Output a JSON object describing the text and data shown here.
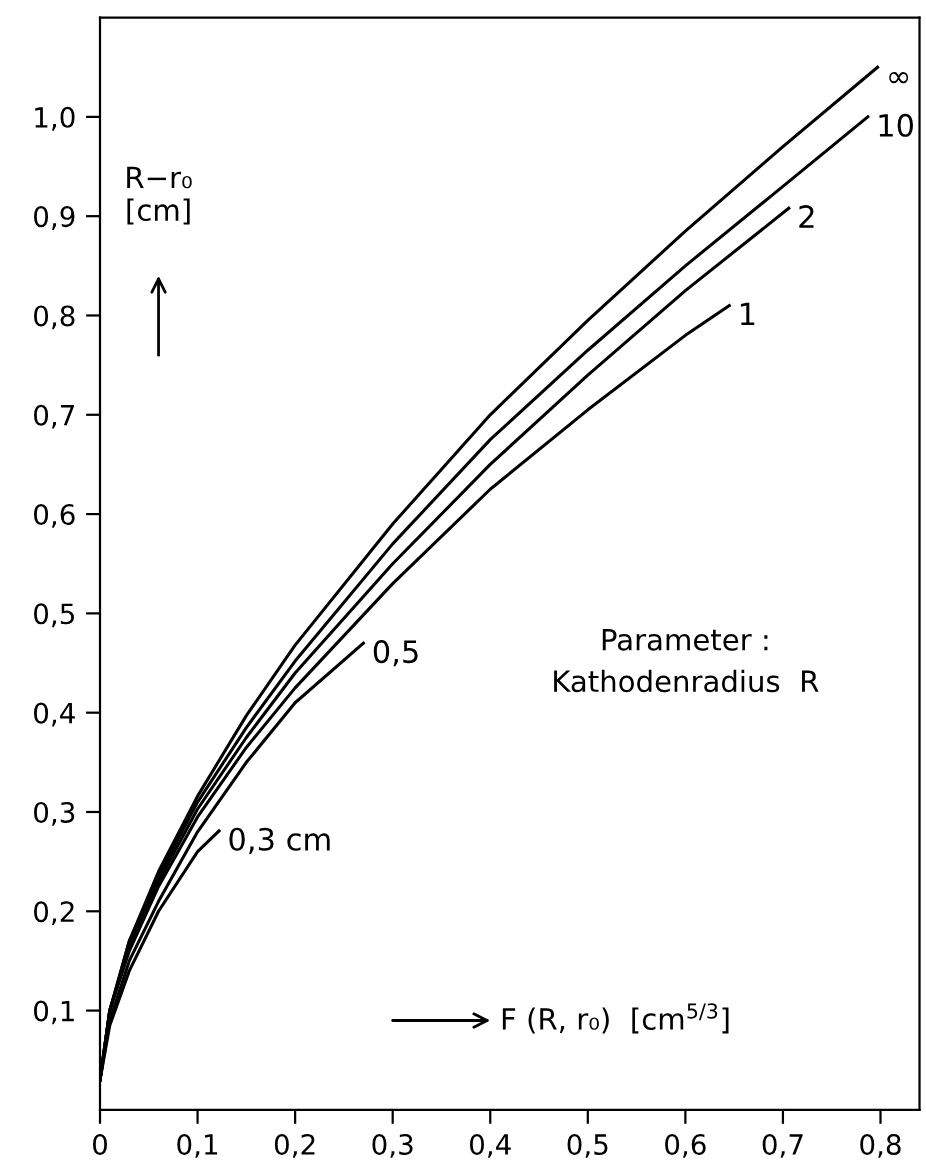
{
  "chart_data": {
    "type": "line",
    "xlabel": "F (R, r₀)  [cm$^{5/3}$]",
    "ylabel": "R−r₀\n[cm]",
    "annotations": [
      "Parameter :\nKathodenradius  R"
    ],
    "series": [
      {
        "name": "∞",
        "color": "#000000",
        "x": [
          0,
          0.01,
          0.03,
          0.06,
          0.1,
          0.15,
          0.2,
          0.3,
          0.4,
          0.5,
          0.6,
          0.7,
          0.797
        ],
        "values": [
          0.03,
          0.1,
          0.17,
          0.24,
          0.316,
          0.397,
          0.468,
          0.59,
          0.7,
          0.795,
          0.885,
          0.97,
          1.05
        ]
      },
      {
        "name": "10",
        "color": "#000000",
        "x": [
          0,
          0.01,
          0.03,
          0.06,
          0.1,
          0.15,
          0.2,
          0.3,
          0.4,
          0.5,
          0.6,
          0.7,
          0.787
        ],
        "values": [
          0.03,
          0.1,
          0.17,
          0.235,
          0.31,
          0.385,
          0.452,
          0.57,
          0.675,
          0.765,
          0.85,
          0.93,
          1.0
        ]
      },
      {
        "name": "2",
        "color": "#000000",
        "x": [
          0,
          0.01,
          0.03,
          0.06,
          0.1,
          0.15,
          0.2,
          0.3,
          0.4,
          0.5,
          0.6,
          0.706
        ],
        "values": [
          0.03,
          0.1,
          0.165,
          0.23,
          0.303,
          0.375,
          0.44,
          0.55,
          0.65,
          0.74,
          0.825,
          0.908
        ]
      },
      {
        "name": "1",
        "color": "#000000",
        "x": [
          0,
          0.01,
          0.03,
          0.06,
          0.1,
          0.15,
          0.2,
          0.3,
          0.4,
          0.5,
          0.6,
          0.645
        ],
        "values": [
          0.03,
          0.1,
          0.16,
          0.225,
          0.295,
          0.365,
          0.425,
          0.53,
          0.625,
          0.705,
          0.78,
          0.81
        ]
      },
      {
        "name": "0,5",
        "color": "#000000",
        "x": [
          0,
          0.01,
          0.03,
          0.06,
          0.1,
          0.15,
          0.2,
          0.27
        ],
        "values": [
          0.03,
          0.09,
          0.15,
          0.21,
          0.28,
          0.35,
          0.41,
          0.47
        ]
      },
      {
        "name": "0,3 cm",
        "color": "#000000",
        "x": [
          0,
          0.01,
          0.03,
          0.06,
          0.1,
          0.122
        ],
        "values": [
          0.03,
          0.085,
          0.14,
          0.2,
          0.26,
          0.281
        ]
      }
    ],
    "xlim": [
      0,
      0.84
    ],
    "ylim": [
      0,
      1.1
    ],
    "xticks": [
      0,
      {
        "value": 0.1,
        "label": "0,1"
      },
      {
        "value": 0.2,
        "label": "0,2"
      },
      {
        "value": 0.3,
        "label": "0,3"
      },
      {
        "value": 0.4,
        "label": "0,4"
      },
      {
        "value": 0.5,
        "label": "0,5"
      },
      {
        "value": 0.6,
        "label": "0,6"
      },
      {
        "value": 0.7,
        "label": "0,7"
      },
      {
        "value": 0.8,
        "label": "0,8"
      }
    ],
    "yticks": [
      {
        "value": 0.1,
        "label": "0,1"
      },
      {
        "value": 0.2,
        "label": "0,2"
      },
      {
        "value": 0.3,
        "label": "0,3"
      },
      {
        "value": 0.4,
        "label": "0,4"
      },
      {
        "value": 0.5,
        "label": "0,5"
      },
      {
        "value": 0.6,
        "label": "0,6"
      },
      {
        "value": 0.7,
        "label": "0,7"
      },
      {
        "value": 0.8,
        "label": "0,8"
      },
      {
        "value": 0.9,
        "label": "0,9"
      },
      {
        "value": 1.0,
        "label": "1,0"
      }
    ],
    "grid": false,
    "legend": false,
    "marker": "none",
    "line_style": "solid"
  }
}
